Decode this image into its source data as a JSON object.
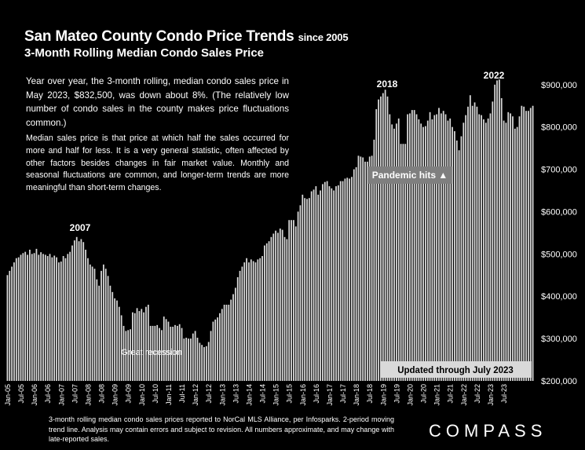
{
  "header": {
    "title": "San Mateo County Condo Price Trends",
    "title_suffix": "since 2005",
    "subtitle": "3-Month Rolling Median Condo Sales Price"
  },
  "notes": {
    "paragraph1": "Year over year, the 3-month rolling, median condo sales price in May 2023, $832,500, was down about 8%. (The relatively low number of condo sales in the county makes price fluctuations common.)",
    "paragraph2": "Median sales price is that price at which half the sales occurred for more and half for less. It is a very general statistic, often affected by other factors besides changes in fair market value. Monthly and seasonal fluctuations are common, and longer-term trends are more meaningful than short-term changes."
  },
  "footer": {
    "source": "3-month rolling median condo sales prices reported to NorCal MLS Alliance, per Infosparks. 2-period moving trend line. Analysis may contain errors and subject to revision. All numbers approximate, and may change with late-reported sales.",
    "brand": "COMPASS"
  },
  "chart_data": {
    "type": "bar",
    "colors": {
      "background": "#000000",
      "bar": "#d9d9d9",
      "text": "#ffffff",
      "label_box": "#7f7f7f"
    },
    "ylim": [
      200000,
      920000
    ],
    "y_ticks": [
      "$200,000",
      "$300,000",
      "$400,000",
      "$500,000",
      "$600,000",
      "$700,000",
      "$800,000",
      "$900,000"
    ],
    "y_tick_values": [
      200000,
      300000,
      400000,
      500000,
      600000,
      700000,
      800000,
      900000
    ],
    "x_ticks": [
      "Jan-05",
      "Jul-05",
      "Jan-06",
      "Jul-06",
      "Jan-07",
      "Jul-07",
      "Jan-08",
      "Jul-08",
      "Jan-09",
      "Jul-09",
      "Jan-10",
      "Jul-10",
      "Jan-11",
      "Jul-11",
      "Jan-12",
      "Jul-12",
      "Jan-13",
      "Jul-13",
      "Jan-14",
      "Jul-14",
      "Jan-15",
      "Jul-15",
      "Jan-16",
      "Jul-16",
      "Jan-17",
      "Jul-17",
      "Jan-18",
      "Jul-18",
      "Jan-19",
      "Jul-19",
      "Jan-20",
      "Jul-20",
      "Jan-21",
      "Jul-21",
      "Jan-22",
      "Jul-22",
      "Jan-23",
      "Jul-23"
    ],
    "start_month": "Jan-05",
    "end_month": "Jul-23",
    "annotations": {
      "year_2007": "2007",
      "year_2018": "2018",
      "year_2022": "2022",
      "great_recession": "Great recession",
      "pandemic": "Pandemic hits ▲",
      "updated": "Updated through July 2023"
    },
    "values": [
      450000,
      460000,
      470000,
      480000,
      490000,
      492000,
      498000,
      502000,
      505000,
      498000,
      510000,
      500000,
      502000,
      512000,
      498000,
      504000,
      500000,
      498000,
      495000,
      500000,
      492000,
      496000,
      492000,
      480000,
      482000,
      495000,
      490000,
      500000,
      505000,
      520000,
      532000,
      540000,
      530000,
      535000,
      528000,
      510000,
      490000,
      475000,
      470000,
      465000,
      440000,
      425000,
      460000,
      475000,
      465000,
      448000,
      425000,
      410000,
      395000,
      390000,
      375000,
      355000,
      330000,
      318000,
      320000,
      322000,
      362000,
      360000,
      372000,
      365000,
      370000,
      362000,
      375000,
      380000,
      330000,
      330000,
      330000,
      332000,
      325000,
      320000,
      352000,
      346000,
      340000,
      328000,
      328000,
      332000,
      330000,
      334000,
      325000,
      300000,
      302000,
      300000,
      300000,
      312000,
      318000,
      302000,
      290000,
      285000,
      280000,
      282000,
      292000,
      318000,
      340000,
      345000,
      350000,
      360000,
      370000,
      380000,
      380000,
      380000,
      392000,
      405000,
      420000,
      445000,
      460000,
      470000,
      480000,
      490000,
      480000,
      487000,
      483000,
      480000,
      487000,
      490000,
      495000,
      520000,
      525000,
      530000,
      540000,
      548000,
      555000,
      550000,
      560000,
      557000,
      540000,
      535000,
      580000,
      580000,
      580000,
      565000,
      600000,
      615000,
      640000,
      632000,
      630000,
      632000,
      648000,
      652000,
      660000,
      640000,
      650000,
      665000,
      670000,
      672000,
      660000,
      655000,
      650000,
      660000,
      662000,
      672000,
      672000,
      678000,
      680000,
      678000,
      682000,
      700000,
      705000,
      732000,
      730000,
      728000,
      718000,
      718000,
      730000,
      732000,
      770000,
      842000,
      865000,
      872000,
      880000,
      888000,
      872000,
      830000,
      806000,
      796000,
      808000,
      820000,
      760000,
      760000,
      760000,
      830000,
      832000,
      840000,
      840000,
      830000,
      818000,
      808000,
      800000,
      802000,
      815000,
      835000,
      818000,
      828000,
      830000,
      845000,
      832000,
      838000,
      830000,
      815000,
      820000,
      800000,
      790000,
      768000,
      745000,
      778000,
      810000,
      828000,
      848000,
      875000,
      850000,
      858000,
      848000,
      830000,
      828000,
      818000,
      810000,
      820000,
      832000,
      860000,
      900000,
      910000,
      912000,
      868000,
      815000,
      810000,
      835000,
      832000,
      825000,
      796000,
      800000,
      825000,
      850000,
      848000,
      838000,
      838000,
      845000,
      850000
    ]
  }
}
